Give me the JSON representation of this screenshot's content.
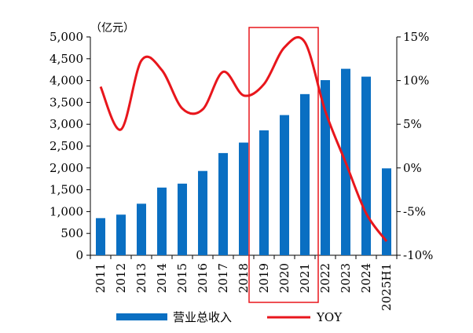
{
  "chart_data": {
    "type": "bar+line",
    "unit_label": "（亿元）",
    "categories": [
      "2011",
      "2012",
      "2013",
      "2014",
      "2015",
      "2016",
      "2017",
      "2018",
      "2019",
      "2020",
      "2021",
      "2022",
      "2023",
      "2024",
      "2025H1"
    ],
    "series": [
      {
        "name": "营业总收入",
        "type": "bar",
        "axis": "left",
        "values": [
          850,
          930,
          1180,
          1550,
          1640,
          1930,
          2340,
          2580,
          2860,
          3210,
          3690,
          4010,
          4270,
          4090,
          1990
        ]
      },
      {
        "name": "YOY",
        "type": "line",
        "axis": "right",
        "values": [
          9.3,
          4.4,
          12.3,
          11.2,
          6.8,
          6.7,
          11.0,
          8.3,
          9.6,
          13.8,
          14.4,
          6.5,
          0.6,
          -5.2,
          -8.4
        ]
      }
    ],
    "y_left": {
      "min": 0,
      "max": 5000,
      "ticks": [
        "0",
        "500",
        "1,000",
        "1,500",
        "2,000",
        "2,500",
        "3,000",
        "3,500",
        "4,000",
        "4,500",
        "5,000"
      ]
    },
    "y_right": {
      "min": -10,
      "max": 15,
      "ticks": [
        "-10%",
        "-5%",
        "0%",
        "5%",
        "10%",
        "15%"
      ]
    },
    "highlight": {
      "from": "2019",
      "to": "2021"
    },
    "colors": {
      "bar": "#0a6fc2",
      "line": "#e8161c",
      "highlight": "#e8161c"
    }
  }
}
